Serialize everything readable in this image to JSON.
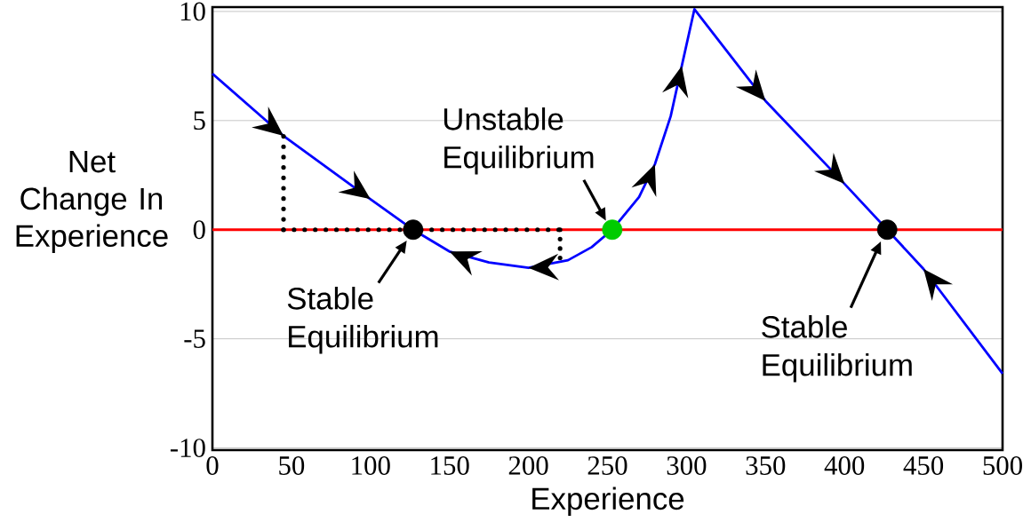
{
  "chart_data": {
    "type": "line",
    "xlabel": "Experience",
    "ylabel": "Net Change In Experience",
    "xlim": [
      0,
      500
    ],
    "ylim": [
      -10.1,
      10.2
    ],
    "xticks": [
      0,
      50,
      100,
      150,
      200,
      250,
      300,
      350,
      400,
      450,
      500
    ],
    "yticks": [
      -10,
      -5,
      0,
      5,
      10
    ],
    "grid": "y",
    "ref_lines": [
      {
        "axis": "y",
        "value": 0,
        "color": "#ff0000"
      }
    ],
    "annotations": [
      {
        "text": "Stable Equilibrium",
        "x": 127,
        "y": 0
      },
      {
        "text": "Unstable Equilibrium",
        "x": 253,
        "y": 0
      },
      {
        "text": "Stable Equilibrium",
        "x": 427,
        "y": 0
      }
    ],
    "series": [
      {
        "type": "line",
        "color": "#0000ff",
        "marker": "none",
        "line_style": "solid",
        "x": [
          0,
          45,
          100,
          127,
          150,
          175,
          200,
          225,
          240,
          253,
          270,
          280,
          290,
          297,
          305,
          350,
          400,
          427,
          450,
          500
        ],
        "values": [
          7.15,
          4.3,
          1.4,
          0,
          -1.0,
          -1.5,
          -1.75,
          -1.4,
          -0.8,
          0,
          1.5,
          3.0,
          5.2,
          7.5,
          10.1,
          5.9,
          2.1,
          0,
          -1.8,
          -6.6
        ]
      },
      {
        "type": "line",
        "color": "#000000",
        "marker": "none",
        "line_style": "dotted",
        "x": [
          45,
          45
        ],
        "values": [
          0,
          4.3
        ]
      },
      {
        "type": "line",
        "color": "#000000",
        "marker": "none",
        "line_style": "dotted",
        "x": [
          45,
          220
        ],
        "values": [
          0,
          0
        ]
      },
      {
        "type": "line",
        "color": "#000000",
        "marker": "none",
        "line_style": "dotted",
        "x": [
          220,
          220
        ],
        "values": [
          0,
          -1.3
        ]
      },
      {
        "type": "scatter",
        "color": "#000000",
        "marker": "circle",
        "x": [
          127,
          427
        ],
        "values": [
          0,
          0
        ]
      },
      {
        "type": "scatter",
        "color": "#00cc00",
        "marker": "circle",
        "x": [
          253
        ],
        "values": [
          0
        ]
      }
    ]
  }
}
